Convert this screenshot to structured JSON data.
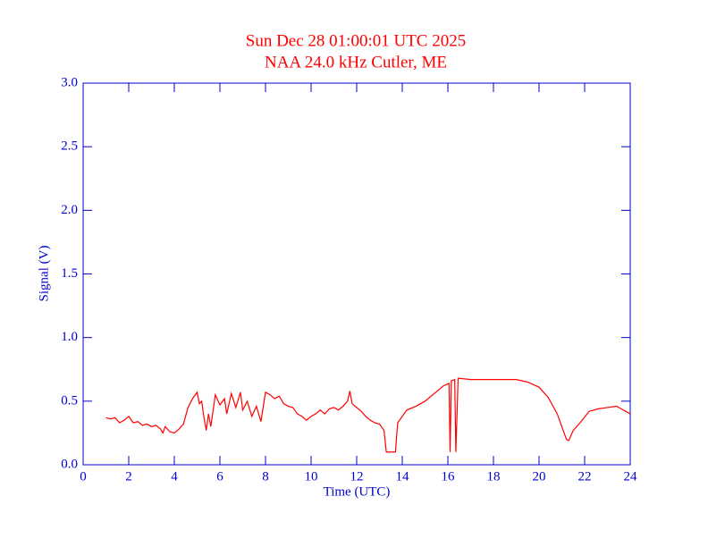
{
  "chart_data": {
    "type": "line",
    "title": "Sun Dec 28 01:00:01 UTC 2025",
    "subtitle": "NAA 24.0 kHz Cutler, ME",
    "x_label": "Time (UTC)",
    "y_label": "Signal (V)",
    "xlim": [
      0,
      24
    ],
    "ylim": [
      0,
      3
    ],
    "xticks": [
      0,
      2,
      4,
      6,
      8,
      10,
      12,
      14,
      16,
      18,
      20,
      22,
      24
    ],
    "yticks": [
      {
        "value": 0,
        "label": "0.0"
      },
      0.5,
      {
        "value": 1,
        "label": "1.0"
      },
      1.5,
      {
        "value": 2,
        "label": "2.0"
      },
      2.5,
      {
        "value": 3,
        "label": "3.0"
      }
    ],
    "axis_color": "#0000cc",
    "grid": false,
    "series": [
      {
        "color": "#ff0000",
        "x": [
          1.0,
          1.2,
          1.4,
          1.6,
          1.8,
          2.0,
          2.2,
          2.4,
          2.6,
          2.8,
          3.0,
          3.2,
          3.4,
          3.5,
          3.6,
          3.8,
          4.0,
          4.2,
          4.4,
          4.6,
          4.8,
          5.0,
          5.1,
          5.2,
          5.3,
          5.4,
          5.5,
          5.6,
          5.8,
          6.0,
          6.2,
          6.3,
          6.5,
          6.7,
          6.9,
          7.0,
          7.2,
          7.4,
          7.6,
          7.8,
          8.0,
          8.2,
          8.4,
          8.6,
          8.8,
          9.0,
          9.2,
          9.4,
          9.6,
          9.8,
          10.0,
          10.2,
          10.4,
          10.6,
          10.8,
          11.0,
          11.2,
          11.4,
          11.6,
          11.7,
          11.8,
          12.0,
          12.2,
          12.4,
          12.6,
          12.8,
          13.0,
          13.2,
          13.3,
          13.7,
          13.75,
          13.8,
          14.0,
          14.2,
          14.6,
          15.0,
          15.4,
          15.8,
          16.05,
          16.1,
          16.15,
          16.3,
          16.35,
          16.45,
          17.0,
          18.0,
          19.0,
          19.5,
          20.0,
          20.4,
          20.8,
          21.0,
          21.2,
          21.3,
          21.5,
          21.8,
          22.2,
          22.6,
          23.0,
          23.4,
          23.6,
          24.0
        ],
        "values": [
          0.37,
          0.36,
          0.37,
          0.33,
          0.35,
          0.38,
          0.33,
          0.34,
          0.31,
          0.32,
          0.3,
          0.31,
          0.28,
          0.25,
          0.3,
          0.26,
          0.25,
          0.28,
          0.32,
          0.45,
          0.52,
          0.57,
          0.48,
          0.5,
          0.37,
          0.27,
          0.4,
          0.3,
          0.55,
          0.47,
          0.52,
          0.4,
          0.56,
          0.45,
          0.57,
          0.43,
          0.5,
          0.38,
          0.46,
          0.34,
          0.57,
          0.55,
          0.52,
          0.54,
          0.48,
          0.46,
          0.45,
          0.4,
          0.38,
          0.35,
          0.38,
          0.4,
          0.43,
          0.4,
          0.44,
          0.45,
          0.43,
          0.46,
          0.5,
          0.58,
          0.48,
          0.45,
          0.42,
          0.38,
          0.35,
          0.33,
          0.32,
          0.27,
          0.1,
          0.1,
          0.22,
          0.33,
          0.38,
          0.43,
          0.46,
          0.5,
          0.56,
          0.62,
          0.64,
          0.1,
          0.66,
          0.67,
          0.1,
          0.68,
          0.67,
          0.67,
          0.67,
          0.65,
          0.61,
          0.53,
          0.4,
          0.3,
          0.2,
          0.19,
          0.27,
          0.33,
          0.42,
          0.44,
          0.45,
          0.46,
          0.44,
          0.4
        ]
      }
    ]
  }
}
